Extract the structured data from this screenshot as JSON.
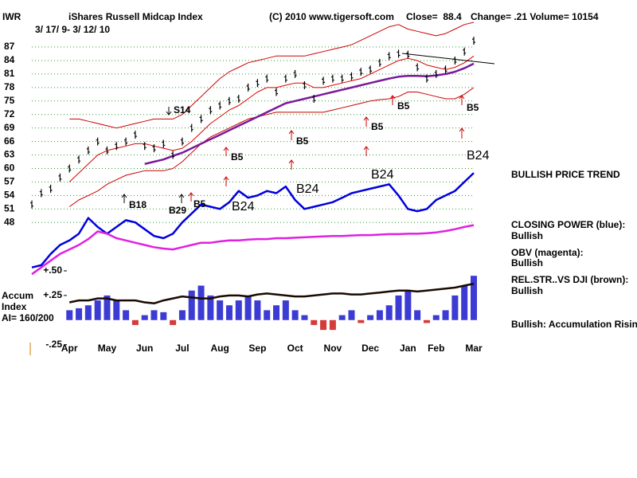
{
  "chart_data": [
    {
      "type": "stock",
      "symbol": "IWR",
      "title": "iShares Russell Midcap Index",
      "source": "(C) 2010 www.tigersoft.com",
      "stats": [
        "Close=  88.4",
        "Change= .21 Volume= 10154"
      ],
      "subtitle": "3/ 17/ 9- 3/ 12/ 10",
      "categories": [
        null,
        null,
        null,
        null,
        "Apr",
        null,
        null,
        null,
        "May",
        null,
        null,
        null,
        "Jun",
        null,
        null,
        null,
        "Jul",
        null,
        null,
        null,
        "Aug",
        null,
        null,
        null,
        "Sep",
        null,
        null,
        null,
        "Oct",
        null,
        null,
        null,
        "Nov",
        null,
        null,
        null,
        "Dec",
        null,
        null,
        null,
        "Jan",
        null,
        null,
        "Feb",
        null,
        null,
        null,
        "Mar"
      ],
      "ylim": [
        36,
        92.5
      ],
      "yticks": [
        87,
        84,
        81,
        78,
        75,
        72,
        69,
        66,
        63,
        60,
        57,
        54,
        51,
        48
      ],
      "grid": true,
      "grid_color": "#2a9a2a",
      "series": [
        {
          "style": "line",
          "color": "#cc0000",
          "values": [
            null,
            null,
            null,
            null,
            71,
            71,
            70.5,
            70,
            69.5,
            69,
            69.5,
            70,
            70.5,
            71,
            71,
            71,
            72,
            74,
            76,
            78,
            80,
            81.5,
            82.5,
            83.5,
            84,
            84.5,
            85,
            85,
            85,
            85,
            85.5,
            86,
            86.5,
            87,
            87.5,
            88.5,
            89.5,
            90.5,
            91.5,
            92,
            91,
            90.5,
            90,
            89.5,
            90,
            91,
            92,
            92.5
          ]
        },
        {
          "style": "line",
          "color": "#cc0000",
          "values": [
            null,
            null,
            null,
            null,
            51.5,
            53,
            54,
            55,
            56.5,
            57.5,
            58.5,
            59,
            59.5,
            59.5,
            59.5,
            60,
            61.5,
            63.5,
            65.5,
            67,
            68,
            69,
            70,
            71,
            71.5,
            72,
            72.5,
            72.5,
            72.5,
            72.5,
            72.5,
            72.5,
            73,
            73.5,
            74,
            74.5,
            75,
            75.3,
            75.5,
            76,
            77,
            77,
            76.5,
            76,
            75.5,
            75.5,
            76.5,
            78
          ]
        },
        {
          "style": "line",
          "color": "#dd0000",
          "values": [
            null,
            null,
            null,
            null,
            57,
            59,
            61,
            63,
            64,
            64.5,
            65,
            65.5,
            65.5,
            65,
            64.5,
            64,
            64.5,
            66,
            68,
            70,
            71.5,
            73,
            74,
            75.5,
            77,
            78,
            78,
            78.5,
            79,
            79,
            78,
            78,
            78.5,
            79,
            79.5,
            80,
            81,
            82,
            83,
            84,
            84.5,
            84,
            83,
            82.5,
            82,
            82.5,
            83.5,
            85
          ]
        },
        {
          "style": "thick-line",
          "color": "#7a1a9a",
          "values": [
            null,
            null,
            null,
            null,
            null,
            null,
            null,
            null,
            null,
            null,
            null,
            null,
            61,
            61.5,
            62,
            62.8,
            63.5,
            64.5,
            65.5,
            66.5,
            67.5,
            68.5,
            69.5,
            70.5,
            71.5,
            72.5,
            73.5,
            74.5,
            75,
            75.5,
            76,
            76.5,
            77,
            77.5,
            78,
            78.5,
            79,
            79.5,
            80,
            80.4,
            80.6,
            80.6,
            80.5,
            80.7,
            81,
            81.5,
            82.3,
            83.3
          ]
        },
        {
          "style": "thick-line",
          "color": "#0000dd",
          "values": [
            38,
            38.5,
            41,
            43,
            44,
            45.5,
            49,
            47,
            45.5,
            47,
            48.5,
            48,
            46.5,
            45,
            44.5,
            45.5,
            48,
            50,
            52,
            51.5,
            51,
            52.5,
            55,
            53.5,
            54,
            55,
            54.5,
            56,
            53,
            51,
            51.5,
            52,
            52.5,
            53.5,
            54.5,
            55,
            55.5,
            56,
            56.5,
            54,
            51,
            50.5,
            51,
            53,
            54,
            55,
            57,
            59
          ]
        },
        {
          "style": "thick-line",
          "color": "#e020e0",
          "values": [
            36.5,
            38,
            39.5,
            41,
            42,
            43,
            44.3,
            46,
            45.5,
            44.5,
            44,
            43.5,
            43,
            42.5,
            42.2,
            42,
            42.5,
            43,
            43.5,
            43.5,
            43.8,
            44,
            44,
            44.2,
            44.3,
            44.3,
            44.5,
            44.5,
            44.6,
            44.7,
            44.8,
            44.9,
            45,
            45,
            45.1,
            45.2,
            45.2,
            45.3,
            45.4,
            45.4,
            45.5,
            45.5,
            45.6,
            45.8,
            46.1,
            46.5,
            47,
            47.4
          ]
        },
        {
          "style": "bars",
          "color": "#000000",
          "values": [
            52,
            54.5,
            55.5,
            58,
            60,
            62,
            64,
            66,
            64,
            65,
            66,
            67.5,
            65,
            64.5,
            65.5,
            63,
            66,
            69,
            71,
            73,
            74,
            75,
            75.5,
            78,
            79,
            80,
            77,
            80,
            81,
            78.5,
            75.5,
            79.5,
            80,
            80,
            80.5,
            81.5,
            82,
            83.5,
            85,
            85.5,
            85.3,
            82.5,
            80,
            81,
            82,
            84,
            86,
            88.4
          ]
        }
      ],
      "annotations": [
        "S14",
        "B18",
        "B29",
        "B5",
        "B24",
        "B5",
        "B5",
        "B24",
        "B5",
        "B24",
        "B5",
        "B5",
        "B24"
      ],
      "notes": [
        "BULLISH PRICE TREND",
        "CLOSING POWER (blue):",
        "Bullish",
        "OBV (magenta):",
        "Bullish",
        "REL.STR..VS DJI (brown):",
        "Bullish",
        "Bullish: Accumulation Rising"
      ]
    },
    {
      "type": "accumulation",
      "title": "Accum",
      "subtitle": "Index",
      "note": "AI= 160/200",
      "ylim": [
        -0.35,
        0.5
      ],
      "yticks": [
        {
          "value": 0.5,
          "label": "+.50"
        },
        {
          "value": 0.25,
          "label": "+.25"
        },
        {
          "value": -0.25,
          "label": "-.25"
        }
      ],
      "series": [
        {
          "style": "histogram",
          "color": "#1a1acc",
          "negative_color": "#cc1a1a",
          "values": [
            null,
            null,
            null,
            null,
            0.1,
            0.12,
            0.15,
            0.2,
            0.25,
            0.2,
            0.1,
            -0.05,
            0.05,
            0.1,
            0.08,
            -0.05,
            0.1,
            0.3,
            0.35,
            0.25,
            0.2,
            0.15,
            0.2,
            0.25,
            0.2,
            0.1,
            0.15,
            0.2,
            0.1,
            0.05,
            -0.05,
            -0.1,
            -0.1,
            0.05,
            0.1,
            -0.03,
            0.05,
            0.1,
            0.15,
            0.25,
            0.3,
            0.1,
            -0.03,
            0.05,
            0.1,
            0.25,
            0.35,
            0.45
          ]
        },
        {
          "style": "thick-line",
          "color": "#1a0a00",
          "values": [
            null,
            null,
            null,
            null,
            0.18,
            0.2,
            0.2,
            0.22,
            0.22,
            0.2,
            0.2,
            0.2,
            0.18,
            0.17,
            0.2,
            0.22,
            0.24,
            0.23,
            0.22,
            0.22,
            0.24,
            0.25,
            0.25,
            0.24,
            0.26,
            0.27,
            0.26,
            0.25,
            0.24,
            0.24,
            0.25,
            0.26,
            0.27,
            0.27,
            0.26,
            0.26,
            0.27,
            0.28,
            0.29,
            0.3,
            0.3,
            0.29,
            0.3,
            0.31,
            0.32,
            0.33,
            0.35,
            0.37
          ]
        }
      ]
    }
  ]
}
